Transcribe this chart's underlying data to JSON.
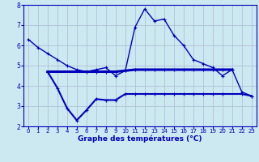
{
  "line1_x": [
    0,
    1,
    2,
    3,
    4,
    5,
    6,
    7,
    8,
    9,
    10,
    11,
    12,
    13,
    14,
    15,
    16,
    17,
    18,
    19,
    20,
    21,
    22,
    23
  ],
  "line1_y": [
    6.3,
    5.9,
    5.6,
    5.3,
    5.0,
    4.8,
    4.7,
    4.8,
    4.9,
    4.5,
    4.75,
    6.9,
    7.8,
    7.2,
    7.3,
    6.5,
    6.0,
    5.3,
    5.1,
    4.9,
    4.5,
    4.8,
    3.7,
    3.5
  ],
  "line2_x": [
    2,
    7,
    8,
    9,
    10,
    11,
    12,
    13,
    14,
    15,
    16,
    17,
    18,
    19,
    20,
    21
  ],
  "line2_y": [
    4.7,
    4.7,
    4.7,
    4.7,
    4.75,
    4.8,
    4.8,
    4.8,
    4.8,
    4.8,
    4.8,
    4.8,
    4.8,
    4.8,
    4.8,
    4.8
  ],
  "line3_x": [
    2,
    3,
    4,
    5,
    6,
    7,
    8,
    9,
    10,
    11,
    12,
    13,
    14,
    15,
    16,
    17,
    18,
    19,
    20,
    22,
    23
  ],
  "line3_y": [
    4.7,
    3.9,
    2.9,
    2.3,
    2.8,
    3.35,
    3.3,
    3.3,
    3.6,
    3.6,
    3.6,
    3.6,
    3.6,
    3.6,
    3.6,
    3.6,
    3.6,
    3.6,
    3.6,
    3.6,
    3.5
  ],
  "line_color": "#0000bb",
  "bg_color": "#cce8f0",
  "grid_color": "#aabbd0",
  "xlabel": "Graphe des températures (°C)",
  "xlim": [
    -0.5,
    23.5
  ],
  "ylim": [
    2,
    8
  ],
  "yticks": [
    2,
    3,
    4,
    5,
    6,
    7,
    8
  ],
  "xticks": [
    0,
    1,
    2,
    3,
    4,
    5,
    6,
    7,
    8,
    9,
    10,
    11,
    12,
    13,
    14,
    15,
    16,
    17,
    18,
    19,
    20,
    21,
    22,
    23
  ]
}
